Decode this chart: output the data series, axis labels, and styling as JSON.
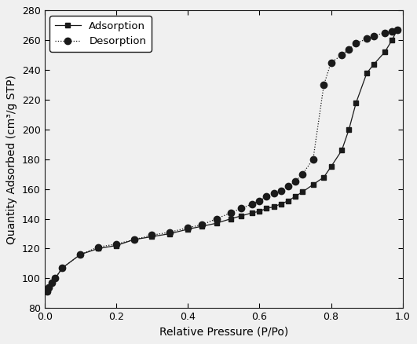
{
  "adsorption_x": [
    0.007,
    0.012,
    0.02,
    0.03,
    0.05,
    0.1,
    0.15,
    0.2,
    0.25,
    0.3,
    0.35,
    0.4,
    0.44,
    0.48,
    0.52,
    0.55,
    0.58,
    0.6,
    0.62,
    0.64,
    0.66,
    0.68,
    0.7,
    0.72,
    0.75,
    0.78,
    0.8,
    0.83,
    0.85,
    0.87,
    0.9,
    0.92,
    0.95,
    0.97,
    0.985
  ],
  "adsorption_y": [
    91,
    94,
    97,
    100,
    107,
    116,
    120,
    122,
    126,
    128,
    130,
    133,
    135,
    137,
    140,
    142,
    144,
    145,
    147,
    148,
    150,
    152,
    155,
    158,
    163,
    168,
    175,
    186,
    200,
    218,
    238,
    244,
    252,
    260,
    267
  ],
  "desorption_x": [
    0.007,
    0.012,
    0.02,
    0.03,
    0.05,
    0.1,
    0.15,
    0.2,
    0.25,
    0.3,
    0.35,
    0.4,
    0.44,
    0.48,
    0.52,
    0.55,
    0.58,
    0.6,
    0.62,
    0.64,
    0.66,
    0.68,
    0.7,
    0.72,
    0.75,
    0.78,
    0.8,
    0.83,
    0.85,
    0.87,
    0.9,
    0.92,
    0.95,
    0.97,
    0.985
  ],
  "desorption_y": [
    91,
    94,
    97,
    100,
    107,
    116,
    121,
    123,
    126,
    129,
    131,
    134,
    136,
    140,
    144,
    147,
    150,
    152,
    155,
    157,
    159,
    162,
    165,
    170,
    180,
    230,
    245,
    250,
    254,
    258,
    261,
    263,
    265,
    266,
    267
  ],
  "xlabel": "Relative Pressure (P/Po)",
  "ylabel": "Quantity Adsorbed (cm³/g STP)",
  "xlim": [
    0.0,
    1.0
  ],
  "ylim": [
    80,
    280
  ],
  "xticks": [
    0.0,
    0.2,
    0.4,
    0.6,
    0.8,
    1.0
  ],
  "yticks": [
    80,
    100,
    120,
    140,
    160,
    180,
    200,
    220,
    240,
    260,
    280
  ],
  "adsorption_label": "Adsorption",
  "desorption_label": "Desorption",
  "line_color": "#1a1a1a",
  "background_color": "#f0f0f0",
  "line_width": 0.9,
  "ads_marker_size": 5,
  "des_marker_size": 6
}
